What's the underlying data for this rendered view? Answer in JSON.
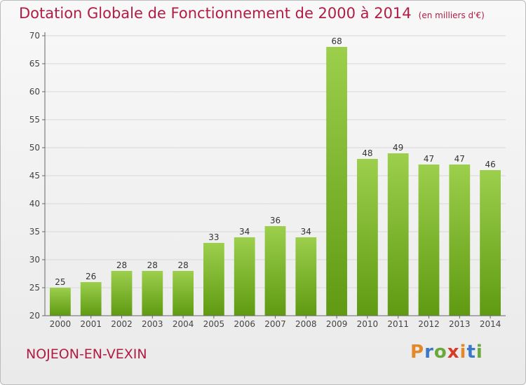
{
  "chart_data": {
    "type": "bar",
    "title": "Dotation Globale de Fonctionnement de 2000 à 2014",
    "unit_note": "(en milliers d'€)",
    "categories": [
      "2000",
      "2001",
      "2002",
      "2003",
      "2004",
      "2005",
      "2006",
      "2007",
      "2008",
      "2009",
      "2010",
      "2011",
      "2012",
      "2013",
      "2014"
    ],
    "values": [
      25,
      26,
      28,
      28,
      28,
      33,
      34,
      36,
      34,
      68,
      48,
      49,
      47,
      47,
      46
    ],
    "ylim": [
      20,
      70
    ],
    "yticks": [
      20,
      25,
      30,
      35,
      40,
      45,
      50,
      55,
      60,
      65,
      70
    ],
    "grid": true,
    "bar_color_top": "#9ccf4c",
    "bar_color_bottom": "#5f9a12"
  },
  "commune": "NOJEON-EN-VEXIN",
  "logo": {
    "letters": [
      "P",
      "r",
      "o",
      "x",
      "i",
      "t",
      "i"
    ],
    "colors": [
      "#e3892a",
      "#3c78c8",
      "#6aa83a",
      "#d93a26",
      "#e3892a",
      "#3c78c8",
      "#6aa83a"
    ]
  }
}
